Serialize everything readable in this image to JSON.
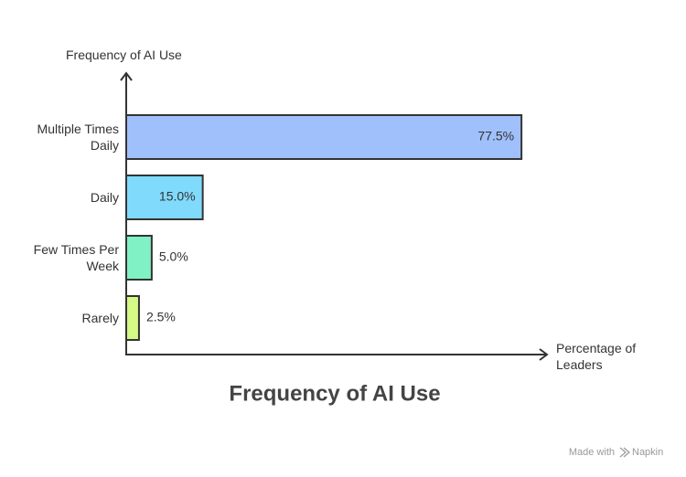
{
  "chart_data": {
    "type": "bar",
    "orientation": "horizontal",
    "title": "Frequency of AI Use",
    "y_axis_label": "Frequency of AI Use",
    "x_axis_label": "Percentage of Leaders",
    "categories": [
      "Multiple Times Daily",
      "Daily",
      "Few Times Per Week",
      "Rarely"
    ],
    "values": [
      77.5,
      15.0,
      5.0,
      2.5
    ],
    "value_labels": [
      "77.5%",
      "15.0%",
      "5.0%",
      "2.5%"
    ],
    "colors": [
      "#a0c0fb",
      "#80dafc",
      "#80f1c4",
      "#d4f984"
    ],
    "xlim": [
      0,
      82.5
    ]
  },
  "footer": {
    "text": "Made with",
    "brand": "Napkin"
  }
}
